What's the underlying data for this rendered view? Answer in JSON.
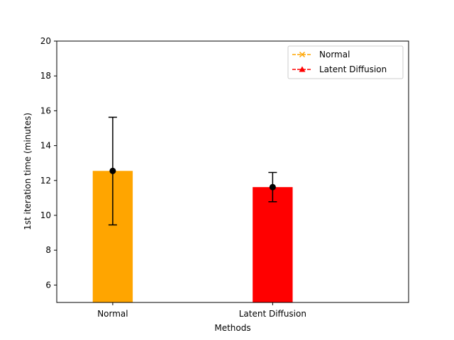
{
  "chart_data": {
    "type": "bar",
    "title": "",
    "xlabel": "Methods",
    "ylabel": "1st iteration time (minutes)",
    "categories": [
      "Normal",
      "Latent Diffusion"
    ],
    "values": [
      12.55,
      11.62
    ],
    "errors_low": [
      9.45,
      10.78
    ],
    "errors_high": [
      15.63,
      12.46
    ],
    "colors": [
      "#FFA500",
      "#FF0000"
    ],
    "ylim": [
      5,
      20
    ],
    "yticks": [
      6,
      8,
      10,
      12,
      14,
      16,
      18,
      20
    ],
    "grid": false,
    "legend": {
      "placement": "upper-right",
      "entries": [
        {
          "label": "Normal",
          "color": "#FFA500",
          "marker": "x",
          "linestyle": "dashed"
        },
        {
          "label": "Latent Diffusion",
          "color": "#FF0000",
          "marker": "triangle-up",
          "linestyle": "dashed"
        }
      ]
    }
  }
}
